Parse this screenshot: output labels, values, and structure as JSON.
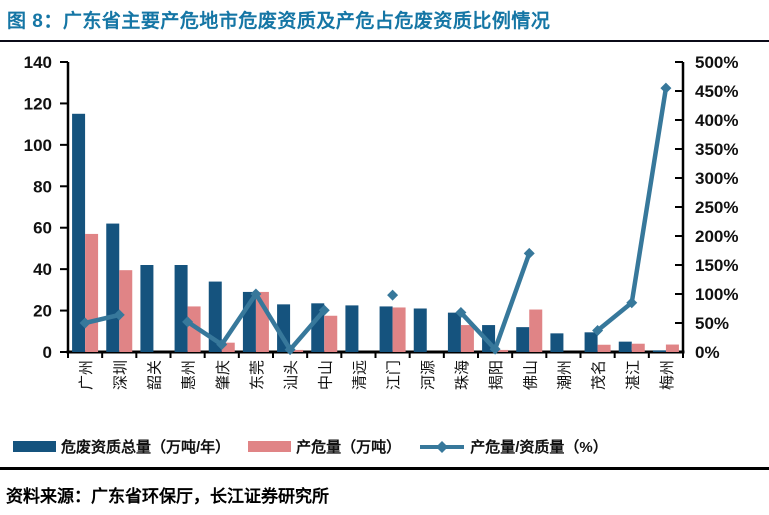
{
  "header": {
    "title": "图 8：广东省主要产危地市危废资质及产危占危废资质比例情况"
  },
  "source": {
    "text": "资料来源：广东省环保厅，长江证券研究所"
  },
  "legend": [
    {
      "label": "危废资质总量（万吨/年）",
      "type": "bar",
      "color": "#15537E"
    },
    {
      "label": "产危量（万吨）",
      "type": "bar",
      "color": "#E08486"
    },
    {
      "label": "产危量/资质量（%）",
      "type": "line",
      "color": "#37789B"
    }
  ],
  "colors": {
    "bar_total": "#15537E",
    "bar_output": "#E08486",
    "ratio_line": "#37789B",
    "title": "#1576A5",
    "axis": "#000000",
    "axis_text": "#111111"
  },
  "chart_data": {
    "type": "bar",
    "subtype": "bar+line combo, dual axis",
    "title": "图 8：广东省主要产危地市危废资质及产危占危废资质比例情况",
    "categories": [
      "广州",
      "深圳",
      "韶关",
      "惠州",
      "肇庆",
      "东莞",
      "汕头",
      "中山",
      "清远",
      "江门",
      "河源",
      "珠海",
      "揭阳",
      "佛山",
      "潮州",
      "茂名",
      "湛江",
      "梅州"
    ],
    "series": [
      {
        "name": "危废资质总量（万吨/年）",
        "type": "bar",
        "axis": "left",
        "color": "#15537E",
        "values": [
          115,
          62,
          42,
          42,
          34,
          29,
          23,
          23.5,
          22.5,
          22,
          21,
          19,
          13,
          12,
          9,
          9.5,
          5,
          0.8
        ]
      },
      {
        "name": "产危量（万吨）",
        "type": "bar",
        "axis": "left",
        "color": "#E08486",
        "values": [
          57,
          39.5,
          null,
          22,
          4.5,
          29,
          1,
          17.5,
          null,
          21.5,
          null,
          13,
          1,
          20.5,
          null,
          3.5,
          4,
          3.6
        ]
      },
      {
        "name": "产危量/资质量（%）",
        "type": "line",
        "axis": "right",
        "color": "#37789B",
        "marker": "diamond",
        "values": [
          50,
          64,
          null,
          52,
          13,
          100,
          4,
          72,
          null,
          98,
          null,
          68,
          5,
          170,
          null,
          37,
          85,
          455
        ]
      }
    ],
    "left_axis": {
      "min": 0,
      "max": 140,
      "step": 20,
      "suffix": ""
    },
    "right_axis": {
      "min": 0,
      "max": 500,
      "step": 50,
      "suffix": "%"
    },
    "grid": false,
    "legend_position": "bottom",
    "xlabel_rotation": -90
  }
}
